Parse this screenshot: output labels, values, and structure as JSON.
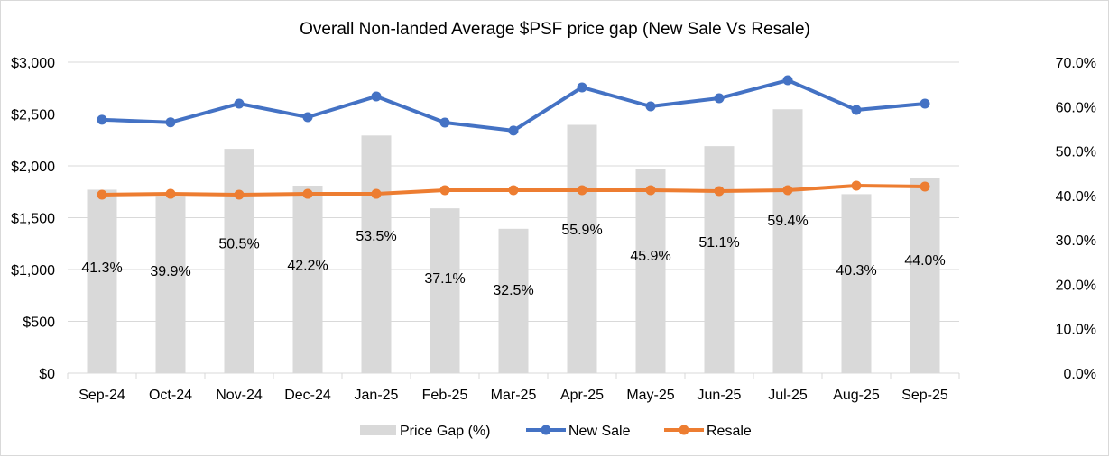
{
  "chart_data": {
    "type": "bar+line",
    "title": "Overall Non-landed Average $PSF price gap (New Sale Vs Resale)",
    "categories": [
      "Sep-24",
      "Oct-24",
      "Nov-24",
      "Dec-24",
      "Jan-25",
      "Feb-25",
      "Mar-25",
      "Apr-25",
      "May-25",
      "Jun-25",
      "Jul-25",
      "Aug-25",
      "Sep-25"
    ],
    "series": [
      {
        "name": "Price Gap (%)",
        "type": "bar",
        "axis": "right",
        "color": "#d9d9d9",
        "values": [
          41.3,
          39.9,
          50.5,
          42.2,
          53.5,
          37.1,
          32.5,
          55.9,
          45.9,
          51.1,
          59.4,
          40.3,
          44.0
        ],
        "labels": [
          "41.3%",
          "39.9%",
          "50.5%",
          "42.2%",
          "53.5%",
          "37.1%",
          "32.5%",
          "55.9%",
          "45.9%",
          "51.1%",
          "59.4%",
          "40.3%",
          "44.0%"
        ]
      },
      {
        "name": "New Sale",
        "type": "line",
        "axis": "left",
        "color": "#4472c4",
        "values": [
          2445,
          2420,
          2600,
          2470,
          2670,
          2417,
          2340,
          2757,
          2574,
          2652,
          2826,
          2539,
          2600
        ]
      },
      {
        "name": "Resale",
        "type": "line",
        "axis": "left",
        "color": "#ed7d31",
        "values": [
          1722,
          1730,
          1722,
          1730,
          1730,
          1765,
          1765,
          1765,
          1765,
          1757,
          1765,
          1809,
          1800
        ]
      }
    ],
    "y_left": {
      "label": "",
      "range": [
        0,
        3000
      ],
      "ticks": [
        0,
        500,
        1000,
        1500,
        2000,
        2500,
        3000
      ],
      "tick_labels": [
        "$0",
        "$500",
        "$1,000",
        "$1,500",
        "$2,000",
        "$2,500",
        "$3,000"
      ]
    },
    "y_right": {
      "label": "",
      "range": [
        0,
        70
      ],
      "ticks": [
        0,
        10,
        20,
        30,
        40,
        50,
        60,
        70
      ],
      "tick_labels": [
        "0.0%",
        "10.0%",
        "20.0%",
        "30.0%",
        "40.0%",
        "50.0%",
        "60.0%",
        "70.0%"
      ]
    },
    "xlabel": "",
    "grid": true,
    "legend": {
      "position": "bottom",
      "entries": [
        "Price Gap (%)",
        "New Sale",
        "Resale"
      ]
    }
  }
}
